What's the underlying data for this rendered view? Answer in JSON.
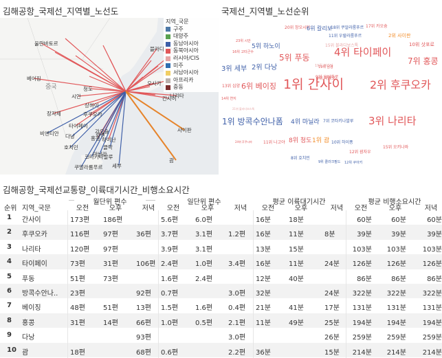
{
  "titles": {
    "map": "김해공항_국제선_지역별_노선도",
    "cloud": "국제선_지역별_노선순위",
    "table": "김해공항_국제선교통량_이륙대기시간_비행소요시간"
  },
  "map": {
    "legend_title": "지역_국문",
    "legend": [
      {
        "label": "구주",
        "color": "#4e79a7"
      },
      {
        "label": "대양주",
        "color": "#59a14f"
      },
      {
        "label": "동남아시아",
        "color": "#3e5fa8"
      },
      {
        "label": "동북아시아",
        "color": "#e15759"
      },
      {
        "label": "러시아/CIS",
        "color": "#e6a5a5"
      },
      {
        "label": "미주",
        "color": "#2f6eb0"
      },
      {
        "label": "서남아시아",
        "color": "#f1ce63"
      },
      {
        "label": "아프리카",
        "color": "#bab0ac"
      },
      {
        "label": "중동",
        "color": "#7c2e2e"
      }
    ],
    "places": [
      "울란바토르",
      "베이징",
      "블라디보스톡",
      "삿포로",
      "중국",
      "시안",
      "청도",
      "오사카",
      "나리타",
      "간사이",
      "장자제",
      "상하이",
      "후쿠오카",
      "타이페이",
      "가오슝",
      "화롄",
      "홍콩",
      "비엔티안",
      "다낭",
      "하이난",
      "호치민",
      "클락",
      "마닐라",
      "코타키나발루",
      "쿠알라룸푸르",
      "세부",
      "사이판",
      "괌"
    ]
  },
  "cloud": [
    {
      "text": "20위 창오시티",
      "color": "#e15759",
      "size": 6
    },
    {
      "text": "6위 칼리보",
      "color": "#3e5fa8",
      "size": 8
    },
    {
      "text": "18위 쿠알라룸푸르",
      "color": "#3e5fa8",
      "size": 6
    },
    {
      "text": "17위 카오슝",
      "color": "#e15759",
      "size": 6
    },
    {
      "text": "23위 시안",
      "color": "#e15759",
      "size": 5
    },
    {
      "text": "11위 우랄라룸푸르",
      "color": "#3e5fa8",
      "size": 6
    },
    {
      "text": "2위 사이판",
      "color": "#f28e2b",
      "size": 7
    },
    {
      "text": "5위 하노이",
      "color": "#3e5fa8",
      "size": 9
    },
    {
      "text": "15위 블라디보스톡",
      "color": "#e6a5a5",
      "size": 6
    },
    {
      "text": "10위 삿포로",
      "color": "#e15759",
      "size": 7
    },
    {
      "text": "16위 고타군수",
      "color": "#e15759",
      "size": 5
    },
    {
      "text": "5위 푸동",
      "color": "#e15759",
      "size": 12
    },
    {
      "text": "4위 타이페이",
      "color": "#e15759",
      "size": 15
    },
    {
      "text": "19위 블라디",
      "color": "#e6a5a5",
      "size": 5
    },
    {
      "text": "9위 오비히로",
      "color": "#e15759",
      "size": 6
    },
    {
      "text": "7위 홍콩",
      "color": "#e15759",
      "size": 12
    },
    {
      "text": "3위 세부",
      "color": "#3e5fa8",
      "size": 10
    },
    {
      "text": "2위 다낭",
      "color": "#3e5fa8",
      "size": 10
    },
    {
      "text": "19위 남경",
      "color": "#e15759",
      "size": 5
    },
    {
      "text": "9위 마카오",
      "color": "#e15759",
      "size": 6
    },
    {
      "text": "13위 심양",
      "color": "#e15759",
      "size": 6
    },
    {
      "text": "6위 베이징",
      "color": "#e15759",
      "size": 11
    },
    {
      "text": "1위 간사이",
      "color": "#e15759",
      "size": 19
    },
    {
      "text": "2위 후쿠오카",
      "color": "#e15759",
      "size": 16
    },
    {
      "text": "14위 연지",
      "color": "#e15759",
      "size": 5
    },
    {
      "text": "21위 블라디보스톡",
      "color": "#e6a5a5",
      "size": 4
    },
    {
      "text": "1위 방콕수안나폼",
      "color": "#3e5fa8",
      "size": 12
    },
    {
      "text": "4위 마닐라",
      "color": "#3e5fa8",
      "size": 9
    },
    {
      "text": "7위 코타키나발루",
      "color": "#3e5fa8",
      "size": 6
    },
    {
      "text": "3위 나리타",
      "color": "#e15759",
      "size": 15
    },
    {
      "text": "24위 후쿠시마",
      "color": "#e15759",
      "size": 4
    },
    {
      "text": "11위 나고야",
      "color": "#e15759",
      "size": 6
    },
    {
      "text": "8위 청도",
      "color": "#e15759",
      "size": 9
    },
    {
      "text": "1위 괌",
      "color": "#f28e2b",
      "size": 9
    },
    {
      "text": "10위 하이퐁",
      "color": "#3e5fa8",
      "size": 6
    },
    {
      "text": "15위 오키나와",
      "color": "#e15759",
      "size": 6
    },
    {
      "text": "12위 괌자우",
      "color": "#e15759",
      "size": 6
    },
    {
      "text": "8위 호치민",
      "color": "#3e5fa8",
      "size": 6
    },
    {
      "text": "9위 클라크필드",
      "color": "#3e5fa8",
      "size": 5
    },
    {
      "text": "12위 쿠아키",
      "color": "#3e5fa8",
      "size": 5
    }
  ],
  "table": {
    "group_headers": [
      "월단위 편수",
      "일단위 편수",
      "평균 이륙대기시간",
      "평균 비행소요시간"
    ],
    "sub_headers": {
      "rank": "순위",
      "name": "지역_국문",
      "cols": [
        "오전",
        "오후",
        "저녁"
      ]
    },
    "rows": [
      {
        "rank": "1",
        "name": "간사이",
        "m": [
          "173편",
          "186편",
          ""
        ],
        "d": [
          "5.6편",
          "6.0편",
          ""
        ],
        "t": [
          "16분",
          "18분",
          ""
        ],
        "f": [
          "60분",
          "60분",
          "60분"
        ]
      },
      {
        "rank": "2",
        "name": "후쿠오카",
        "m": [
          "116편",
          "97편",
          "36편"
        ],
        "d": [
          "3.7편",
          "3.1편",
          "1.2편"
        ],
        "t": [
          "16분",
          "11분",
          "8분"
        ],
        "f": [
          "39분",
          "39분",
          "39분"
        ]
      },
      {
        "rank": "3",
        "name": "나리타",
        "m": [
          "120편",
          "97편",
          ""
        ],
        "d": [
          "3.9편",
          "3.1편",
          ""
        ],
        "t": [
          "13분",
          "15분",
          ""
        ],
        "f": [
          "103분",
          "103분",
          "103분"
        ]
      },
      {
        "rank": "4",
        "name": "타이페이",
        "m": [
          "73편",
          "31편",
          "106편"
        ],
        "d": [
          "2.4편",
          "1.0편",
          "3.4편"
        ],
        "t": [
          "16분",
          "11분",
          "24분"
        ],
        "f": [
          "126분",
          "126분",
          "126분"
        ]
      },
      {
        "rank": "5",
        "name": "푸동",
        "m": [
          "51편",
          "73편",
          ""
        ],
        "d": [
          "1.6편",
          "2.4편",
          ""
        ],
        "t": [
          "12분",
          "40분",
          ""
        ],
        "f": [
          "86분",
          "86분",
          "86분"
        ]
      },
      {
        "rank": "6",
        "name": "방콕수안나..",
        "m": [
          "23편",
          "",
          "92편"
        ],
        "d": [
          "0.7편",
          "",
          "3.0편"
        ],
        "t": [
          "32분",
          "",
          "24분"
        ],
        "f": [
          "322분",
          "322분",
          "322분"
        ]
      },
      {
        "rank": "7",
        "name": "베이징",
        "m": [
          "48편",
          "51편",
          "13편"
        ],
        "d": [
          "1.5편",
          "1.6편",
          "0.4편"
        ],
        "t": [
          "21분",
          "41분",
          "17분"
        ],
        "f": [
          "131분",
          "131분",
          "131분"
        ]
      },
      {
        "rank": "8",
        "name": "홍콩",
        "m": [
          "31편",
          "14편",
          "66편"
        ],
        "d": [
          "1.0편",
          "0.5편",
          "2.1편"
        ],
        "t": [
          "11분",
          "49분",
          "25분"
        ],
        "f": [
          "194분",
          "194분",
          "194분"
        ]
      },
      {
        "rank": "9",
        "name": "다낭",
        "m": [
          "",
          "",
          "93편"
        ],
        "d": [
          "",
          "",
          "3.0편"
        ],
        "t": [
          "",
          "",
          "26분"
        ],
        "f": [
          "259분",
          "259분",
          "259분"
        ]
      },
      {
        "rank": "10",
        "name": "괌",
        "m": [
          "18편",
          "",
          "68편"
        ],
        "d": [
          "0.6편",
          "",
          "2.2편"
        ],
        "t": [
          "36분",
          "",
          "15분"
        ],
        "f": [
          "214분",
          "214분",
          "214분"
        ]
      }
    ]
  }
}
